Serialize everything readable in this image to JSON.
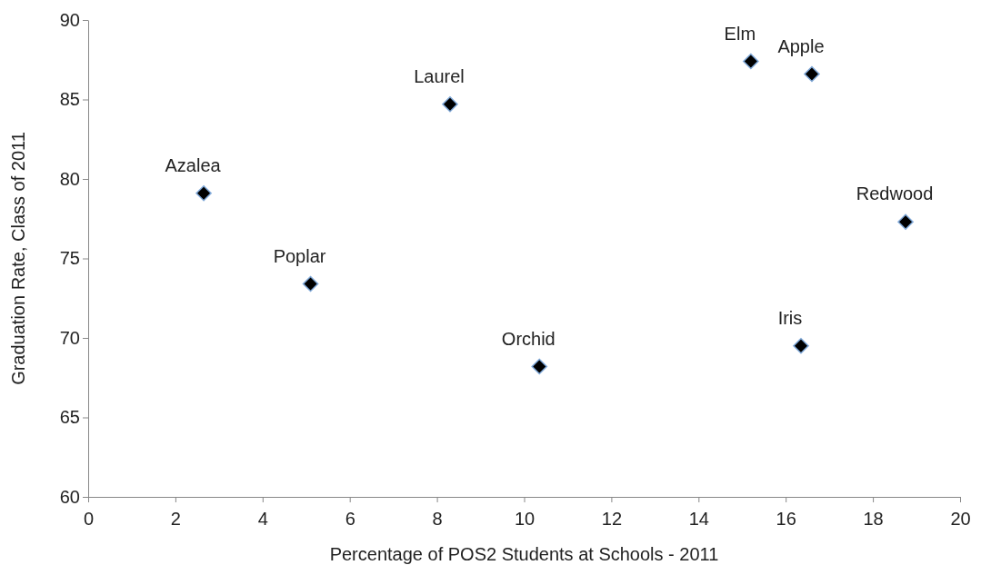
{
  "chart_data": {
    "type": "scatter",
    "xlabel": "Percentage of POS2 Students at Schools - 2011",
    "ylabel": "Graduation Rate, Class of 2011",
    "xlim": [
      0,
      20
    ],
    "xticks": [
      0,
      2,
      4,
      6,
      8,
      10,
      12,
      14,
      16,
      18,
      20
    ],
    "ylim": [
      60,
      90
    ],
    "yticks": [
      60,
      65,
      70,
      75,
      80,
      85,
      90
    ],
    "marker": "diamond",
    "grid": false,
    "series": [
      {
        "name": "Azalea",
        "color": "#000000",
        "x": [
          2.65
        ],
        "values": [
          79.1
        ]
      },
      {
        "name": "Poplar",
        "color": "#000000",
        "x": [
          5.1
        ],
        "values": [
          73.4
        ]
      },
      {
        "name": "Laurel",
        "color": "#000000",
        "x": [
          8.3
        ],
        "values": [
          84.7
        ]
      },
      {
        "name": "Orchid",
        "color": "#000000",
        "x": [
          10.35
        ],
        "values": [
          68.2
        ]
      },
      {
        "name": "Elm",
        "color": "#000000",
        "x": [
          15.2
        ],
        "values": [
          87.4
        ]
      },
      {
        "name": "Apple",
        "color": "#000000",
        "x": [
          16.6
        ],
        "values": [
          86.6
        ]
      },
      {
        "name": "Iris",
        "color": "#000000",
        "x": [
          16.35
        ],
        "values": [
          69.5
        ]
      },
      {
        "name": "Redwood",
        "color": "#000000",
        "x": [
          18.75
        ],
        "values": [
          77.3
        ]
      }
    ]
  }
}
